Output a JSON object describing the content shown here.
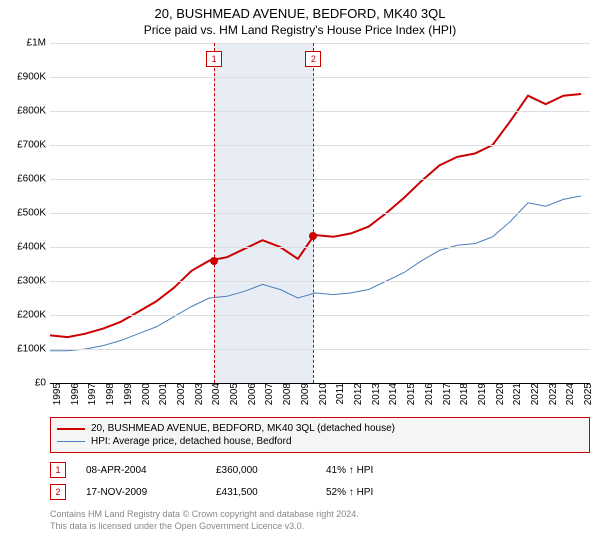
{
  "title": "20, BUSHMEAD AVENUE, BEDFORD, MK40 3QL",
  "subtitle": "Price paid vs. HM Land Registry's House Price Index (HPI)",
  "chart": {
    "type": "line",
    "background_color": "#ffffff",
    "grid_color": "#dddddd",
    "grid_first_color": "#000000",
    "x_years": [
      1995,
      1996,
      1997,
      1998,
      1999,
      2000,
      2001,
      2002,
      2003,
      2004,
      2005,
      2006,
      2007,
      2008,
      2009,
      2010,
      2011,
      2012,
      2013,
      2014,
      2015,
      2016,
      2017,
      2018,
      2019,
      2020,
      2021,
      2022,
      2023,
      2024,
      2025
    ],
    "xlim": [
      1995,
      2025.5
    ],
    "ylim": [
      0,
      1000000
    ],
    "ytick_step": 100000,
    "ytick_labels": [
      "£0",
      "£100K",
      "£200K",
      "£300K",
      "£400K",
      "£500K",
      "£600K",
      "£700K",
      "£800K",
      "£900K",
      "£1M"
    ],
    "label_fontsize": 10,
    "series": [
      {
        "name": "property",
        "label": "20, BUSHMEAD AVENUE, BEDFORD, MK40 3QL (detached house)",
        "color": "#cc0000",
        "line_width": 2,
        "data": [
          [
            1995,
            140000
          ],
          [
            1996,
            135000
          ],
          [
            1997,
            145000
          ],
          [
            1998,
            160000
          ],
          [
            1999,
            180000
          ],
          [
            2000,
            210000
          ],
          [
            2001,
            240000
          ],
          [
            2002,
            280000
          ],
          [
            2003,
            330000
          ],
          [
            2004,
            360000
          ],
          [
            2005,
            370000
          ],
          [
            2006,
            395000
          ],
          [
            2007,
            420000
          ],
          [
            2008,
            400000
          ],
          [
            2009,
            365000
          ],
          [
            2009.88,
            431500
          ],
          [
            2010,
            435000
          ],
          [
            2011,
            430000
          ],
          [
            2012,
            440000
          ],
          [
            2013,
            460000
          ],
          [
            2014,
            500000
          ],
          [
            2015,
            545000
          ],
          [
            2016,
            595000
          ],
          [
            2017,
            640000
          ],
          [
            2018,
            665000
          ],
          [
            2019,
            675000
          ],
          [
            2020,
            700000
          ],
          [
            2021,
            770000
          ],
          [
            2022,
            845000
          ],
          [
            2023,
            820000
          ],
          [
            2024,
            845000
          ],
          [
            2025,
            850000
          ]
        ]
      },
      {
        "name": "hpi",
        "label": "HPI: Average price, detached house, Bedford",
        "color": "#4a7ebb",
        "line_width": 1,
        "data": [
          [
            1995,
            95000
          ],
          [
            1996,
            95000
          ],
          [
            1997,
            100000
          ],
          [
            1998,
            110000
          ],
          [
            1999,
            125000
          ],
          [
            2000,
            145000
          ],
          [
            2001,
            165000
          ],
          [
            2002,
            195000
          ],
          [
            2003,
            225000
          ],
          [
            2004,
            250000
          ],
          [
            2005,
            255000
          ],
          [
            2006,
            270000
          ],
          [
            2007,
            290000
          ],
          [
            2008,
            275000
          ],
          [
            2009,
            250000
          ],
          [
            2010,
            265000
          ],
          [
            2011,
            260000
          ],
          [
            2012,
            265000
          ],
          [
            2013,
            275000
          ],
          [
            2014,
            300000
          ],
          [
            2015,
            325000
          ],
          [
            2016,
            360000
          ],
          [
            2017,
            390000
          ],
          [
            2018,
            405000
          ],
          [
            2019,
            410000
          ],
          [
            2020,
            430000
          ],
          [
            2021,
            475000
          ],
          [
            2022,
            530000
          ],
          [
            2023,
            520000
          ],
          [
            2024,
            540000
          ],
          [
            2025,
            550000
          ]
        ]
      }
    ],
    "vertical_band": {
      "from": 2004.27,
      "to": 2009.88,
      "color": "#e8edf5"
    },
    "sale_markers": [
      {
        "num": "1",
        "year": 2004.27,
        "price": 360000
      },
      {
        "num": "2",
        "year": 2009.88,
        "price": 431500
      }
    ]
  },
  "legend": {
    "items": [
      {
        "color": "#cc0000",
        "label": "20, BUSHMEAD AVENUE, BEDFORD, MK40 3QL (detached house)"
      },
      {
        "color": "#4a7ebb",
        "label": "HPI: Average price, detached house, Bedford"
      }
    ]
  },
  "sales": [
    {
      "num": "1",
      "date": "08-APR-2004",
      "price": "£360,000",
      "pct": "41% ↑ HPI"
    },
    {
      "num": "2",
      "date": "17-NOV-2009",
      "price": "£431,500",
      "pct": "52% ↑ HPI"
    }
  ],
  "footnote_line1": "Contains HM Land Registry data © Crown copyright and database right 2024.",
  "footnote_line2": "This data is licensed under the Open Government Licence v3.0."
}
